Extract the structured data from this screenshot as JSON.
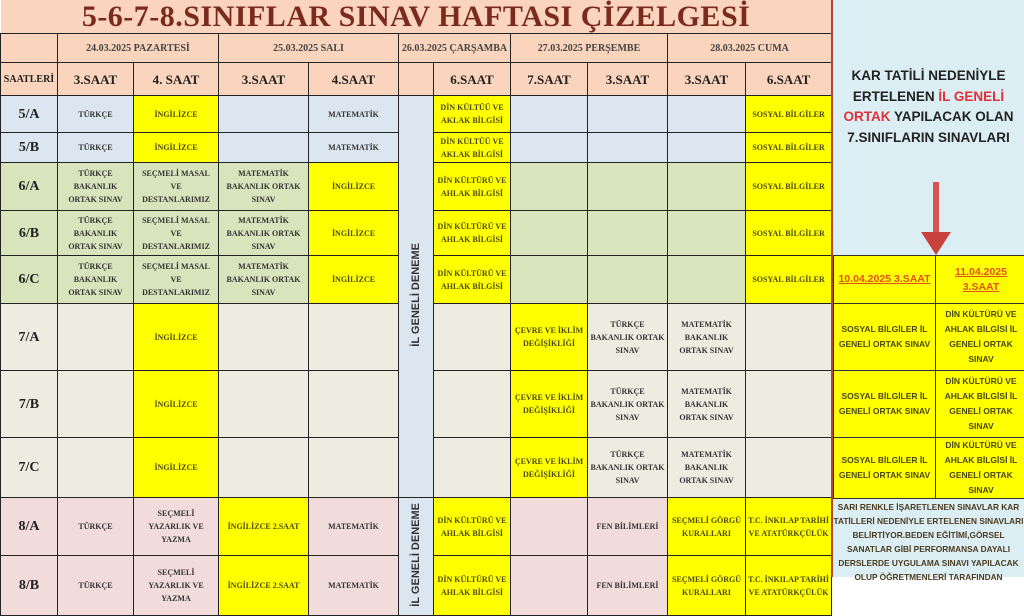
{
  "title": "5-6-7-8.SINIFLAR SINAV HAFTASI ÇİZELGESİ",
  "colors": {
    "header": "#fad4bc",
    "highlight": "#ffff00",
    "grade5": "#dce6f1",
    "grade6": "#d8e4bc",
    "grade7": "#eeece1",
    "grade8": "#f2dcdb",
    "deneme": "#dce6f1",
    "accent_red": "#e0313a"
  },
  "dates": [
    "24.03.2025 PAZARTESİ",
    "25.03.2025 SALI",
    "26.03.2025 ÇARŞAMBA",
    "27.03.2025 PERŞEMBE",
    "28.03.2025 CUMA"
  ],
  "hours_label": "SAATLERİ",
  "hours": [
    "3.SAAT",
    "4. SAAT",
    "3.SAAT",
    "4.SAAT",
    "",
    "6.SAAT",
    "7.SAAT",
    "3.SAAT",
    "3.SAAT",
    "6.SAAT"
  ],
  "deneme_label": "İL GENELİ DENEME",
  "rows": [
    {
      "cls": "5/A",
      "grade": "grade5",
      "cells": [
        {
          "t": "TÜRKÇE"
        },
        {
          "t": "İNGİLİZCE",
          "h": true
        },
        {
          "t": ""
        },
        {
          "t": "MATEMATİK"
        },
        {
          "t": "DİN KÜLTÜÜ VE AKLAK BİLGİSİ",
          "h": true
        },
        {
          "t": ""
        },
        {
          "t": ""
        },
        {
          "t": ""
        },
        {
          "t": "SOSYAL BİLGİLER",
          "h": true
        }
      ]
    },
    {
      "cls": "5/B",
      "grade": "grade5",
      "cells": [
        {
          "t": "TÜRKÇE"
        },
        {
          "t": "İNGİLİZCE",
          "h": true
        },
        {
          "t": ""
        },
        {
          "t": "MATEMATİK"
        },
        {
          "t": "DİN KÜLTÜÜ VE AKLAK BİLGİSİ",
          "h": true
        },
        {
          "t": ""
        },
        {
          "t": ""
        },
        {
          "t": ""
        },
        {
          "t": "SOSYAL BİLGİLER",
          "h": true
        }
      ]
    },
    {
      "cls": "6/A",
      "grade": "grade6",
      "cells": [
        {
          "t": "TÜRKÇE BAKANLIK ORTAK SINAV"
        },
        {
          "t": "SEÇMELİ MASAL VE DESTANLARIMIZ"
        },
        {
          "t": "MATEMATİK BAKANLIK ORTAK SINAV"
        },
        {
          "t": "İNGİLİZCE",
          "h": true
        },
        {
          "t": "DİN KÜLTÜRÜ VE AHLAK BİLGİSİ",
          "h": true
        },
        {
          "t": ""
        },
        {
          "t": ""
        },
        {
          "t": ""
        },
        {
          "t": "SOSYAL BİLGİLER",
          "h": true
        }
      ]
    },
    {
      "cls": "6/B",
      "grade": "grade6",
      "cells": [
        {
          "t": "TÜRKÇE BAKANLIK ORTAK SINAV"
        },
        {
          "t": "SEÇMELİ MASAL VE DESTANLARIMIZ"
        },
        {
          "t": "MATEMATİK BAKANLIK ORTAK SINAV"
        },
        {
          "t": "İNGİLİZCE",
          "h": true
        },
        {
          "t": "DİN KÜLTÜRÜ VE AHLAK BİLGİSİ",
          "h": true
        },
        {
          "t": ""
        },
        {
          "t": ""
        },
        {
          "t": ""
        },
        {
          "t": "SOSYAL BİLGİLER",
          "h": true
        }
      ]
    },
    {
      "cls": "6/C",
      "grade": "grade6",
      "cells": [
        {
          "t": "TÜRKÇE BAKANLIK ORTAK SINAV"
        },
        {
          "t": "SEÇMELİ MASAL VE DESTANLARIMIZ"
        },
        {
          "t": "MATEMATİK BAKANLIK ORTAK SINAV"
        },
        {
          "t": "İNGİLİZCE",
          "h": true
        },
        {
          "t": "DİN KÜLTÜRÜ VE AHLAK BİLGİSİ",
          "h": true
        },
        {
          "t": ""
        },
        {
          "t": ""
        },
        {
          "t": ""
        },
        {
          "t": "SOSYAL BİLGİLER",
          "h": true
        }
      ]
    },
    {
      "cls": "7/A",
      "grade": "grade7",
      "cells": [
        {
          "t": ""
        },
        {
          "t": "İNGİLİZCE",
          "h": true
        },
        {
          "t": ""
        },
        {
          "t": ""
        },
        {
          "t": ""
        },
        {
          "t": "ÇEVRE VE İKLİM DEĞİŞİKLİĞİ",
          "h": true
        },
        {
          "t": "TÜRKÇE BAKANLIK ORTAK SINAV"
        },
        {
          "t": "MATEMATİK BAKANLIK ORTAK SINAV"
        },
        {
          "t": ""
        }
      ]
    },
    {
      "cls": "7/B",
      "grade": "grade7",
      "cells": [
        {
          "t": ""
        },
        {
          "t": "İNGİLİZCE",
          "h": true
        },
        {
          "t": ""
        },
        {
          "t": ""
        },
        {
          "t": ""
        },
        {
          "t": "ÇEVRE VE İKLİM DEĞİŞİKLİĞİ",
          "h": true
        },
        {
          "t": "TÜRKÇE BAKANLIK ORTAK SINAV"
        },
        {
          "t": "MATEMATİK BAKANLIK ORTAK SINAV"
        },
        {
          "t": ""
        }
      ]
    },
    {
      "cls": "7/C",
      "grade": "grade7",
      "cells": [
        {
          "t": ""
        },
        {
          "t": "İNGİLİZCE",
          "h": true
        },
        {
          "t": ""
        },
        {
          "t": ""
        },
        {
          "t": ""
        },
        {
          "t": "ÇEVRE VE İKLİM DEĞİŞİKLİĞİ",
          "h": true
        },
        {
          "t": "TÜRKÇE BAKANLIK ORTAK SINAV"
        },
        {
          "t": "MATEMATİK BAKANLIK ORTAK SINAV"
        },
        {
          "t": ""
        }
      ]
    },
    {
      "cls": "8/A",
      "grade": "grade8",
      "cells": [
        {
          "t": "TÜRKÇE"
        },
        {
          "t": "SEÇMELİ YAZARLIK VE YAZMA"
        },
        {
          "t": "İNGİLİZCE 2.SAAT",
          "h": true
        },
        {
          "t": "MATEMATİK"
        },
        {
          "t": "DİN KÜLTÜRÜ VE AHLAK BİLGİSİ",
          "h": true
        },
        {
          "t": ""
        },
        {
          "t": "FEN BİLİMLERİ"
        },
        {
          "t": "SEÇMELİ GÖRGÜ KURALLARI",
          "h": true
        },
        {
          "t": "T.C. İNKILAP TARİHİ VE ATATÜRKÇÜLÜK",
          "h": true
        }
      ]
    },
    {
      "cls": "8/B",
      "grade": "grade8",
      "cells": [
        {
          "t": "TÜRKÇE"
        },
        {
          "t": "SEÇMELİ YAZARLIK VE YAZMA"
        },
        {
          "t": "İNGİLİZCE 2.SAAT",
          "h": true
        },
        {
          "t": "MATEMATİK"
        },
        {
          "t": "DİN KÜLTÜRÜ VE AHLAK BİLGİSİ",
          "h": true
        },
        {
          "t": ""
        },
        {
          "t": "FEN BİLİMLERİ"
        },
        {
          "t": "SEÇMELİ GÖRGÜ KURALLARI",
          "h": true
        },
        {
          "t": "T.C. İNKILAP TARİHİ VE ATATÜRKÇÜLÜK",
          "h": true
        }
      ]
    }
  ],
  "panel": {
    "notice": {
      "p1": "KAR TATİLİ NEDENİYLE ERTELENEN ",
      "red": "İL GENELİ ORTAK",
      "p2": " YAPILACAK OLAN 7.SINIFLARIN SINAVLARI"
    },
    "arrow_icon": "arrow-down",
    "headers": [
      "10.04.2025 3.SAAT",
      "11.04.2025 3.SAAT"
    ],
    "rows": [
      [
        "SOSYAL BİLGİLER İL GENELİ ORTAK SINAV",
        "DİN KÜLTÜRÜ VE AHLAK BİLGİSİ İL GENELİ ORTAK SINAV"
      ],
      [
        "SOSYAL BİLGİLER İL GENELİ ORTAK SINAV",
        "DİN KÜLTÜRÜ VE AHLAK BİLGİSİ İL GENELİ ORTAK SINAV"
      ],
      [
        "SOSYAL BİLGİLER İL GENELİ ORTAK SINAV",
        "DİN KÜLTÜRÜ VE AHLAK BİLGİSİ İL GENELİ ORTAK SINAV"
      ]
    ],
    "note": "SARI RENKLE İŞARETLENEN SINAVLAR KAR TATİLLERİ NEDENİYLE ERTELENEN SINAVLARI BELİRTİYOR.BEDEN EĞİTİMİ,GÖRSEL SANATLAR GİBİ PERFORMANSA DAYALI DERSLERDE UYGULAMA SINAVI YAPILACAK OLUP ÖĞRETMENLERİ TARAFINDAN"
  }
}
